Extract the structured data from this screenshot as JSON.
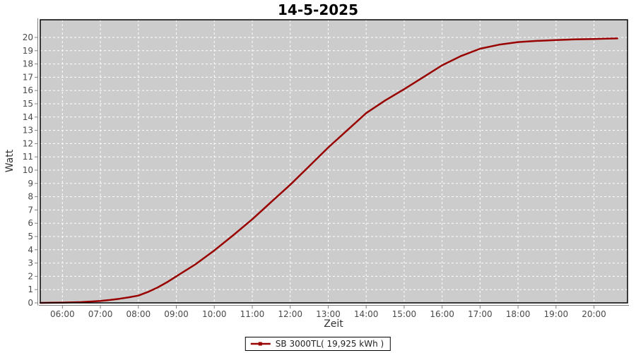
{
  "page": {
    "background": "#ffffff"
  },
  "chart_data": {
    "type": "line",
    "title": "14-5-2025",
    "xlabel": "Zeit",
    "ylabel": "Watt",
    "plot_background": "#cccccc",
    "grid": {
      "color": "#ffffff",
      "style": "dashed"
    },
    "axis_color": "#808080",
    "tick_label_color": "#4a4a4a",
    "legend_position": "bottom-center",
    "x_range": [
      "05:25",
      "20:53"
    ],
    "ylim": [
      0,
      21.33
    ],
    "x_tick_labels": [
      "06:00",
      "07:00",
      "08:00",
      "09:00",
      "10:00",
      "11:00",
      "12:00",
      "13:00",
      "14:00",
      "15:00",
      "16:00",
      "17:00",
      "18:00",
      "19:00",
      "20:00"
    ],
    "y_tick_labels": [
      0,
      1,
      2,
      3,
      4,
      5,
      6,
      7,
      8,
      9,
      10,
      11,
      12,
      13,
      14,
      15,
      16,
      17,
      18,
      19,
      20
    ],
    "series": [
      {
        "name": "SB 3000TL( 19,925 kWh )",
        "color": "#990000",
        "total_kwh_label": "19,925 kWh",
        "points": [
          [
            "05:25",
            0.0
          ],
          [
            "05:45",
            0.01
          ],
          [
            "06:00",
            0.02
          ],
          [
            "06:15",
            0.04
          ],
          [
            "06:30",
            0.06
          ],
          [
            "06:45",
            0.1
          ],
          [
            "07:00",
            0.15
          ],
          [
            "07:15",
            0.22
          ],
          [
            "07:30",
            0.31
          ],
          [
            "07:45",
            0.42
          ],
          [
            "08:00",
            0.55
          ],
          [
            "08:15",
            0.82
          ],
          [
            "08:30",
            1.15
          ],
          [
            "08:45",
            1.55
          ],
          [
            "09:00",
            2.0
          ],
          [
            "09:30",
            2.9
          ],
          [
            "10:00",
            3.95
          ],
          [
            "10:30",
            5.1
          ],
          [
            "11:00",
            6.3
          ],
          [
            "11:30",
            7.6
          ],
          [
            "12:00",
            8.9
          ],
          [
            "12:30",
            10.3
          ],
          [
            "13:00",
            11.7
          ],
          [
            "13:30",
            13.0
          ],
          [
            "14:00",
            14.3
          ],
          [
            "14:30",
            15.25
          ],
          [
            "15:00",
            16.1
          ],
          [
            "15:30",
            17.0
          ],
          [
            "16:00",
            17.9
          ],
          [
            "16:30",
            18.6
          ],
          [
            "17:00",
            19.15
          ],
          [
            "17:30",
            19.45
          ],
          [
            "18:00",
            19.65
          ],
          [
            "18:30",
            19.74
          ],
          [
            "19:00",
            19.8
          ],
          [
            "19:30",
            19.85
          ],
          [
            "20:00",
            19.88
          ],
          [
            "20:20",
            19.91
          ],
          [
            "20:37",
            19.925
          ]
        ]
      }
    ]
  }
}
